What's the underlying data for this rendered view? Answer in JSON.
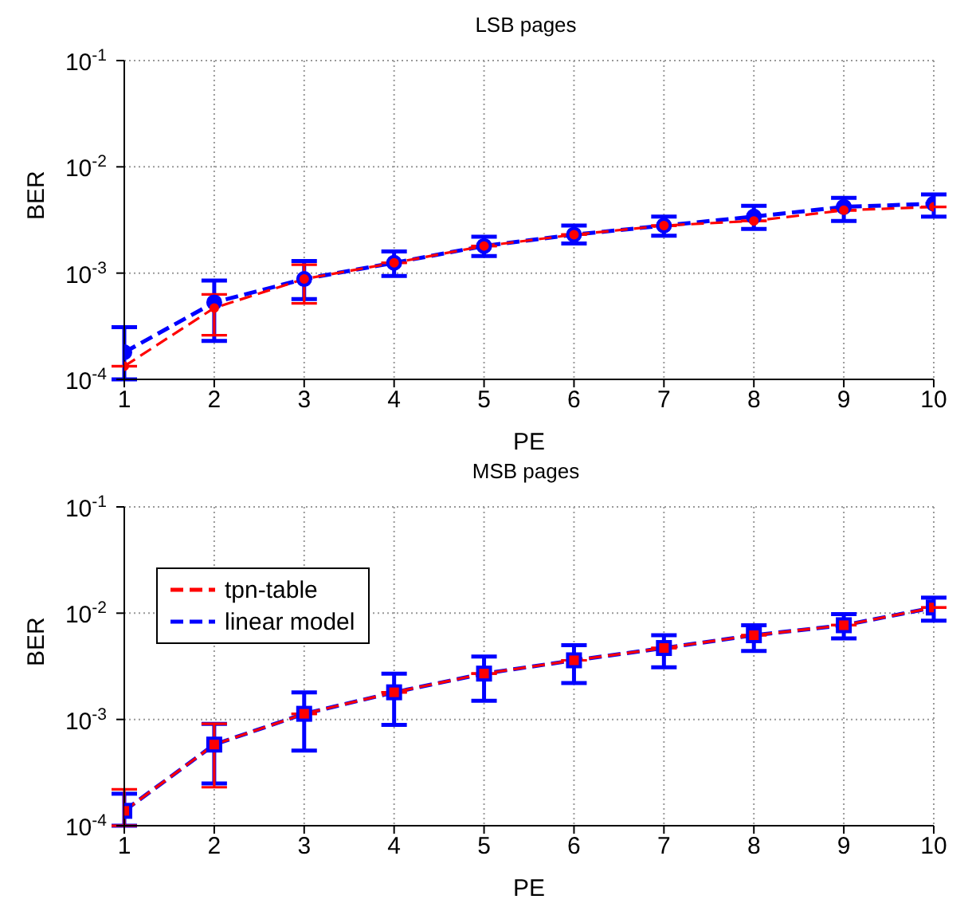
{
  "chart_data": [
    {
      "type": "line",
      "title": "LSB pages",
      "xlabel": "PE",
      "ylabel": "BER",
      "x": [
        1,
        2,
        3,
        4,
        5,
        6,
        7,
        8,
        9,
        10
      ],
      "xlim": [
        1,
        10
      ],
      "xticks": [
        1,
        2,
        3,
        4,
        5,
        6,
        7,
        8,
        9,
        10
      ],
      "log": "y",
      "ylim": [
        0.0001,
        0.1
      ],
      "yticks": [
        {
          "value": 0.0001,
          "label": "10$^{-4}$"
        },
        {
          "value": 0.001,
          "label": "10$^{-3}$"
        },
        {
          "value": 0.01,
          "label": "10$^{-2}$"
        },
        {
          "value": 0.1,
          "label": "10$^{-1}$"
        }
      ],
      "grid": true,
      "legend": false,
      "marker": "circle",
      "line_style": "dashed",
      "series": [
        {
          "color": "#ff0000",
          "values": [
            0.000133,
            0.00047,
            0.00088,
            0.00125,
            0.0018,
            0.0023,
            0.0028,
            0.0031,
            0.0039,
            0.0042
          ],
          "errors": [
            null,
            [
              0.00026,
              0.00063
            ],
            [
              0.00052,
              0.0012
            ],
            null,
            null,
            null,
            null,
            null,
            null,
            null
          ]
        },
        {
          "color": "#0000ff",
          "values": [
            0.00018,
            0.00053,
            0.00088,
            0.00125,
            0.0018,
            0.0023,
            0.0028,
            0.0034,
            0.0042,
            0.0045
          ],
          "errors": [
            [
              0.0001,
              0.00031
            ],
            [
              0.00023,
              0.00085
            ],
            [
              0.00057,
              0.0013
            ],
            [
              0.00094,
              0.0016
            ],
            [
              0.00145,
              0.0022
            ],
            [
              0.0019,
              0.0028
            ],
            [
              0.00225,
              0.0034
            ],
            [
              0.0026,
              0.0043
            ],
            [
              0.0031,
              0.0051
            ],
            [
              0.0034,
              0.0055
            ]
          ]
        }
      ]
    },
    {
      "type": "line",
      "title": "MSB pages",
      "xlabel": "PE",
      "ylabel": "BER",
      "x": [
        1,
        2,
        3,
        4,
        5,
        6,
        7,
        8,
        9,
        10
      ],
      "xlim": [
        1,
        10
      ],
      "xticks": [
        1,
        2,
        3,
        4,
        5,
        6,
        7,
        8,
        9,
        10
      ],
      "log": "y",
      "ylim": [
        0.0001,
        0.1
      ],
      "yticks": [
        {
          "value": 0.0001,
          "label": "10$^{-4}$"
        },
        {
          "value": 0.001,
          "label": "10$^{-3}$"
        },
        {
          "value": 0.01,
          "label": "10$^{-2}$"
        },
        {
          "value": 0.1,
          "label": "10$^{-1}$"
        }
      ],
      "grid": true,
      "legend": "top left",
      "marker": "square",
      "line_style": "dashed",
      "series": [
        {
          "name": "tpn-table",
          "color": "#ff0000",
          "values": [
            0.000138,
            0.00058,
            0.00113,
            0.0018,
            0.0027,
            0.0036,
            0.0047,
            0.0062,
            0.0077,
            0.0113
          ],
          "errors": [
            [
              0.0001,
              0.00022
            ],
            [
              0.00023,
              0.00091
            ],
            null,
            null,
            null,
            null,
            null,
            null,
            null,
            null
          ]
        },
        {
          "name": "linear model",
          "color": "#0000ff",
          "values": [
            0.000138,
            0.00058,
            0.00113,
            0.0018,
            0.0027,
            0.0036,
            0.0047,
            0.0062,
            0.0077,
            0.0113
          ],
          "errors": [
            [
              0.0001,
              0.0002
            ],
            [
              0.00025,
              0.00091
            ],
            [
              0.00051,
              0.0018
            ],
            [
              0.00089,
              0.0027
            ],
            [
              0.0015,
              0.0039
            ],
            [
              0.0022,
              0.005
            ],
            [
              0.0031,
              0.0062
            ],
            [
              0.0044,
              0.0077
            ],
            [
              0.0058,
              0.0098
            ],
            [
              0.0085,
              0.014
            ]
          ]
        }
      ]
    }
  ]
}
